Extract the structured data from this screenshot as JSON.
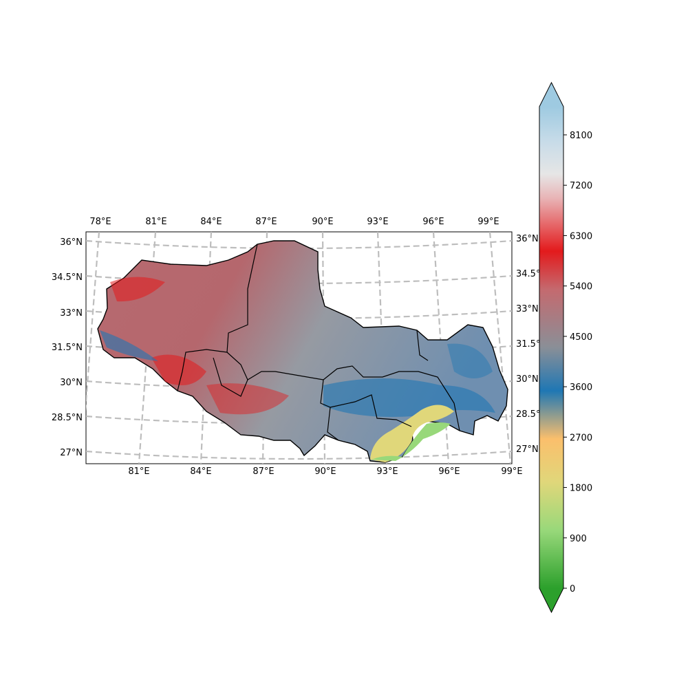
{
  "map": {
    "top_lon_labels": [
      "78°E",
      "81°E",
      "84°E",
      "87°E",
      "90°E",
      "93°E",
      "96°E",
      "99°E"
    ],
    "bottom_lon_labels": [
      "81°E",
      "84°E",
      "87°E",
      "90°E",
      "93°E",
      "96°E",
      "99°E"
    ],
    "left_lat_labels": [
      "36°N",
      "34.5°N",
      "33°N",
      "31.5°N",
      "30°N",
      "28.5°N",
      "27°N"
    ],
    "right_lat_labels": [
      "36°N",
      "34.5°N",
      "33°N",
      "31.5°N",
      "30°N",
      "28.5°N",
      "27°N"
    ],
    "gridline_color": "#bdbdbd",
    "boundary_color": "#000000"
  },
  "colorbar": {
    "ticks": [
      "0",
      "900",
      "1800",
      "2700",
      "3600",
      "4500",
      "5400",
      "6300",
      "7200",
      "8100"
    ],
    "extend": "both",
    "colors": {
      "0": "#2ca02c",
      "900": "#98d87a",
      "1800": "#e0d77a",
      "2700": "#fbbf6c",
      "3600": "#1f77b4",
      "4500": "#8a8f97",
      "5400": "#c46a6f",
      "6300": "#e31a1c",
      "7200": "#e8b4b6",
      "7700": "#e6e6e6",
      "8100": "#c6dbe8",
      "8800": "#9ecae1"
    }
  }
}
